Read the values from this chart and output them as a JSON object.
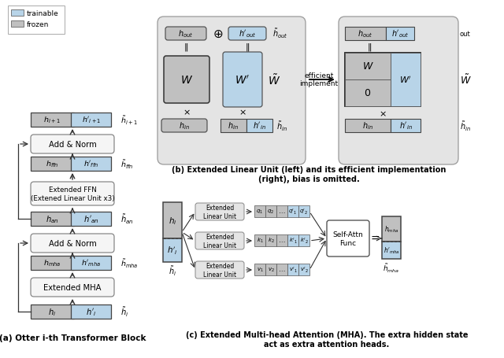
{
  "fig_width": 6.4,
  "fig_height": 4.56,
  "bg_color": "#ffffff",
  "frozen_c": "#c0c0c0",
  "trainable_c": "#b8d4e8",
  "outer_fill": "#e4e4e4",
  "white_fill": "#f5f5f5",
  "caption_a": "(a) Otter i-th Transformer Block",
  "caption_b": "(b) Extended Linear Unit (left) and its efficient implementation\n(right), bias is omitted.",
  "caption_c": "(c) Extended Multi-head Attention (MHA). The extra hidden state\nact as extra attention heads."
}
